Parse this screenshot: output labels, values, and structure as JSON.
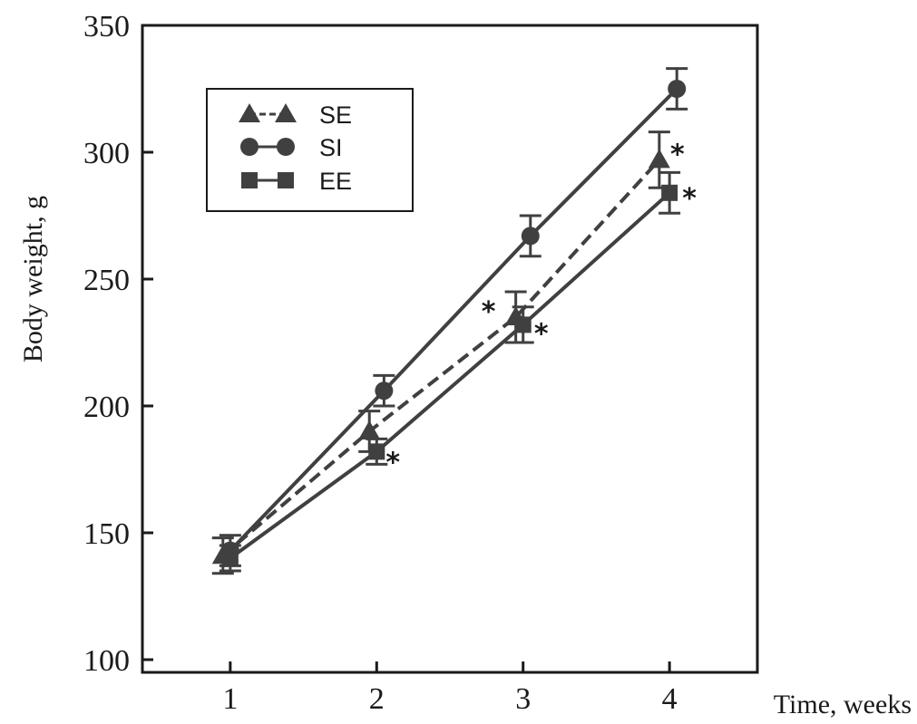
{
  "chart_data": {
    "type": "line",
    "xlabel": "Time, weeks",
    "ylabel": "Body weight, g",
    "x": [
      1,
      2,
      3,
      4
    ],
    "xticks": [
      "1",
      "2",
      "3",
      "4"
    ],
    "xlim": [
      0.4,
      4.6
    ],
    "ylim": [
      95,
      350
    ],
    "yticks": [
      "100",
      "150",
      "200",
      "250",
      "300",
      "350"
    ],
    "legend": {
      "position": "top-left",
      "entries": [
        "SE",
        "SI",
        "EE"
      ]
    },
    "significance_marker": "*",
    "series": [
      {
        "name": "SE",
        "marker": "triangle",
        "line": "dashed",
        "color": "#404040",
        "x": [
          0.95,
          1.95,
          2.95,
          3.93
        ],
        "values": [
          141,
          190,
          235,
          297
        ],
        "errors": [
          7,
          8,
          10,
          11
        ],
        "significant": [
          false,
          false,
          true,
          true
        ]
      },
      {
        "name": "SI",
        "marker": "circle",
        "line": "solid",
        "color": "#404040",
        "x": [
          1.0,
          2.05,
          3.05,
          4.05
        ],
        "values": [
          143,
          206,
          267,
          325
        ],
        "errors": [
          6,
          6,
          8,
          8
        ],
        "significant": [
          false,
          false,
          false,
          false
        ]
      },
      {
        "name": "EE",
        "marker": "square",
        "line": "solid",
        "color": "#404040",
        "x": [
          1.0,
          2.0,
          3.0,
          4.0
        ],
        "values": [
          140,
          182,
          232,
          284
        ],
        "errors": [
          5,
          5,
          7,
          8
        ],
        "significant": [
          false,
          true,
          true,
          true
        ]
      }
    ]
  }
}
